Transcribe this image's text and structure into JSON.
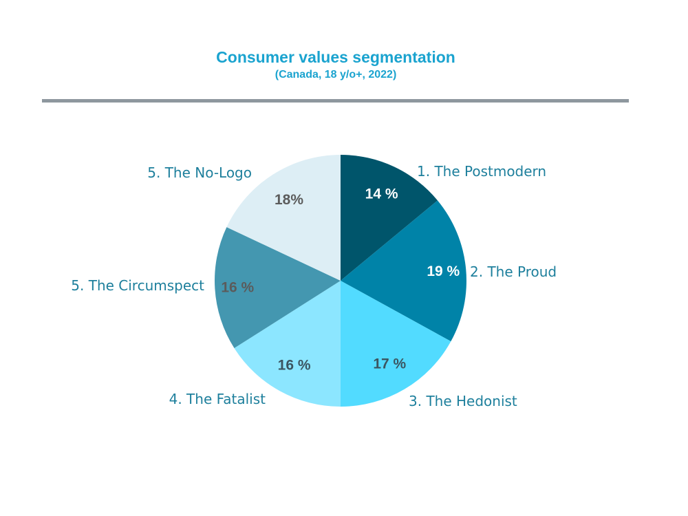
{
  "title": "Consumer values segmentation",
  "subtitle": "(Canada, 18 y/o+, 2022)",
  "chart_data": {
    "type": "pie",
    "title": "Consumer values segmentation",
    "subtitle": "(Canada, 18 y/o+, 2022)",
    "categories": [
      "1. The Postmodern",
      "2. The Proud",
      "3. The Hedonist",
      "4. The Fatalist",
      "5. The Circumspect",
      "5. The No-Logo"
    ],
    "values": [
      14,
      19,
      17,
      16,
      16,
      18
    ],
    "value_labels": [
      "14 %",
      "19 %",
      "17 %",
      "16 %",
      "16 %",
      "18%"
    ],
    "colors": [
      "#00556b",
      "#0083a8",
      "#52dbff",
      "#8ce6ff",
      "#4497b0",
      "#ddeef5"
    ],
    "value_label_colors": [
      "#ffffff",
      "#ffffff",
      "#3b5560",
      "#3b5560",
      "#5b5b5b",
      "#5b5b5b"
    ],
    "label_color": "#1d7f9c",
    "start": "12 o'clock, clockwise"
  }
}
